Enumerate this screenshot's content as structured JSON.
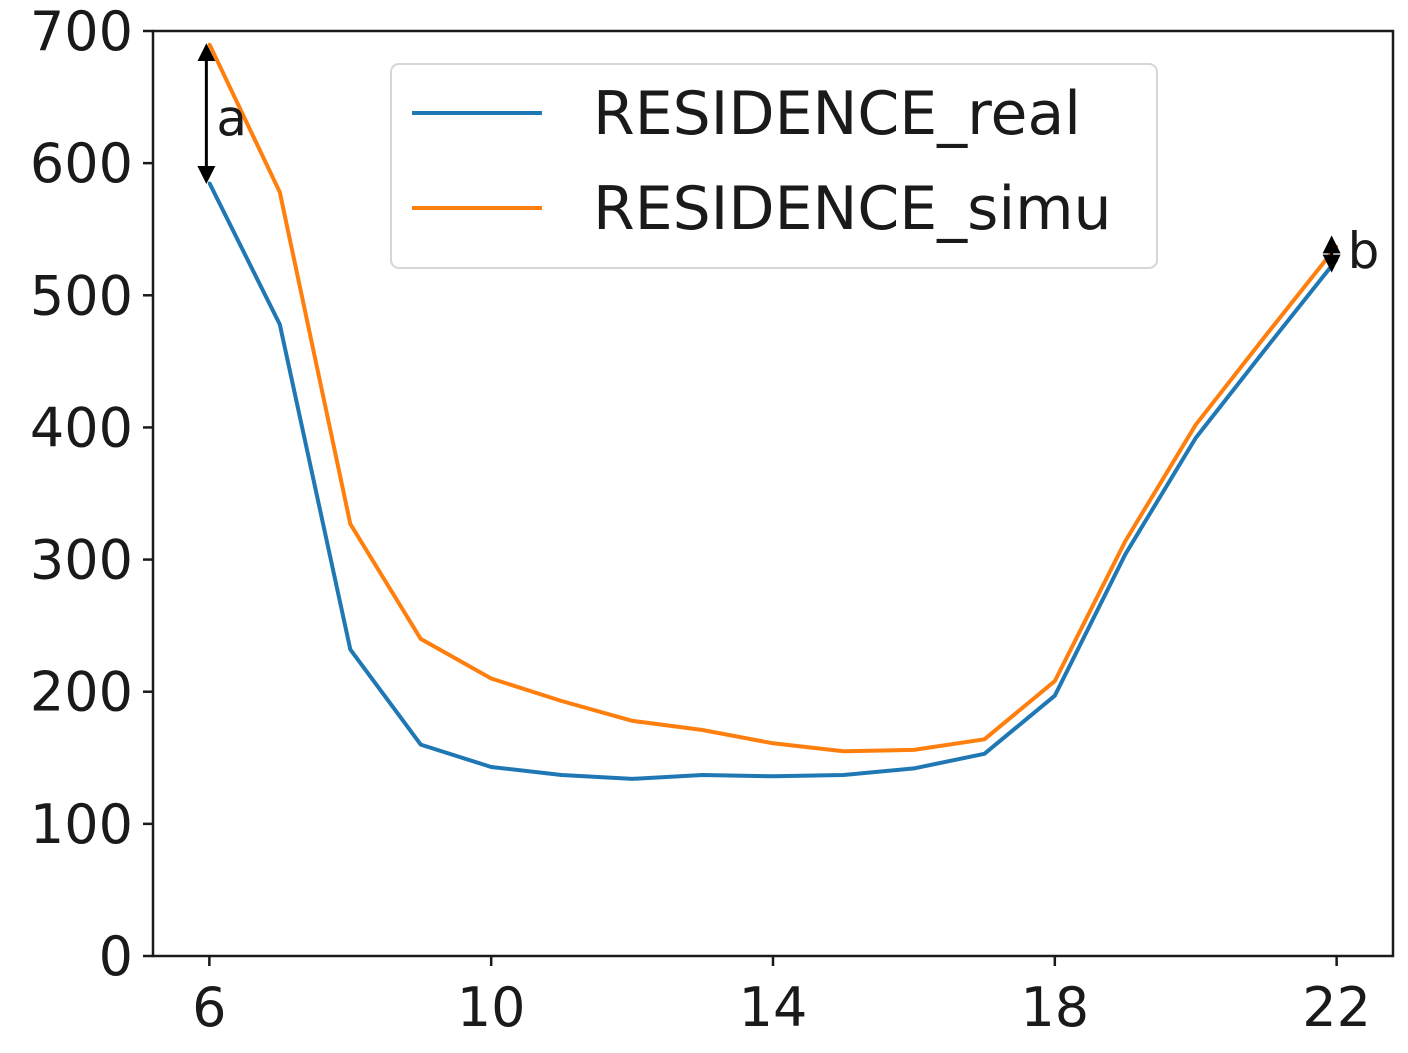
{
  "chart_data": {
    "type": "line",
    "title": "",
    "xlabel": "",
    "ylabel": "",
    "xlim": [
      5.2,
      22.8
    ],
    "ylim": [
      0,
      700
    ],
    "x_ticks": [
      6,
      10,
      14,
      18,
      22
    ],
    "y_ticks": [
      0,
      100,
      200,
      300,
      400,
      500,
      600,
      700
    ],
    "grid": false,
    "legend_position": "top-center",
    "x": [
      6,
      7,
      8,
      9,
      10,
      11,
      12,
      13,
      14,
      15,
      16,
      17,
      18,
      19,
      20,
      21,
      22
    ],
    "series": [
      {
        "name": "RESIDENCE_real",
        "color": "#1f77b4",
        "values": [
          585,
          478,
          232,
          160,
          143,
          137,
          134,
          137,
          136,
          137,
          142,
          153,
          197,
          304,
          392,
          460,
          527
        ]
      },
      {
        "name": "RESIDENCE_simu",
        "color": "#ff7f0e",
        "values": [
          690,
          578,
          327,
          240,
          210,
          193,
          178,
          171,
          161,
          155,
          156,
          164,
          208,
          314,
          402,
          470,
          537
        ]
      }
    ],
    "annotations": [
      {
        "label": "a",
        "x": 6,
        "y_from": 585,
        "y_to": 690
      },
      {
        "label": "b",
        "x": 22,
        "y_from": 527,
        "y_to": 537
      }
    ]
  }
}
